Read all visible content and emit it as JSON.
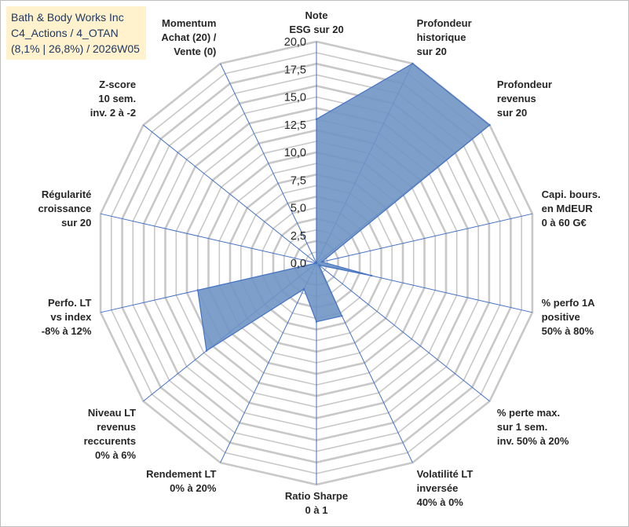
{
  "info": {
    "line1": "Bath & Body Works Inc",
    "line2": "C4_Actions / 4_OTAN",
    "line3": "(8,1% | 26,8%) / 2026W05"
  },
  "colors": {
    "fill": "#6f95c4",
    "stroke": "#4472c4",
    "grid": "#c8c8c8",
    "spoke": "#4472c4",
    "info_bg": "#fff2cc",
    "info_text": "#1f3864"
  },
  "chart_data": {
    "type": "radar",
    "title": "",
    "rmax": 20,
    "rings": 20,
    "tick_values": [
      "0,0",
      "2,5",
      "5,0",
      "7,5",
      "10,0",
      "12,5",
      "15,0",
      "17,5",
      "20,0"
    ],
    "categories": [
      [
        "Note",
        "ESG sur 20"
      ],
      [
        "Profondeur",
        "historique",
        "sur 20"
      ],
      [
        "Profondeur",
        "revenus",
        "sur 20"
      ],
      [
        "Capi. bours.",
        "en MdEUR",
        "0 à 60 G€"
      ],
      [
        "% perfo 1A",
        "positive",
        "50% à 80%"
      ],
      [
        "% perte max.",
        "sur 1 sem.",
        "inv. 50% à 20%"
      ],
      [
        "Volatilité LT",
        "inversée",
        "40% à 0%"
      ],
      [
        "Ratio Sharpe",
        "0 à 1"
      ],
      [
        "Rendement LT",
        "0% à 20%"
      ],
      [
        "Niveau LT",
        "revenus",
        "reccurents",
        "0% à 6%"
      ],
      [
        "Perfo. LT",
        "vs index",
        "-8% à 12%"
      ],
      [
        "Régularité",
        "croissance",
        "sur 20"
      ],
      [
        "Z-score",
        "10 sem.",
        "inv. 2 à -2"
      ],
      [
        "Momentum",
        "Achat (20) /",
        "Vente (0)"
      ]
    ],
    "series": [
      {
        "name": "Bath & Body Works Inc",
        "values": [
          13,
          20,
          20,
          0.5,
          5.1,
          0.3,
          5.3,
          5.3,
          2.6,
          12.7,
          11,
          0,
          0,
          0
        ]
      }
    ]
  }
}
